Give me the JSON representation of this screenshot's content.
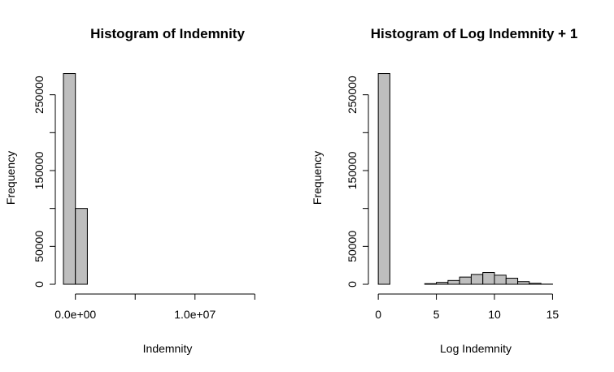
{
  "chart_data": [
    {
      "type": "bar",
      "title": "Histogram of Indemnity",
      "xlabel": "Indemnity",
      "ylabel": "Frequency",
      "bar_color": "#bebebe",
      "border_color": "#000000",
      "bins": [
        {
          "x0": -1000000,
          "x1": 0,
          "count": 278000
        },
        {
          "x0": 0,
          "x1": 1000000,
          "count": 100000
        },
        {
          "x0": 1000000,
          "x1": 16000000,
          "count": 0
        }
      ],
      "xlim": [
        -1000000,
        16000000
      ],
      "ylim": [
        0,
        285000
      ],
      "xticks": [
        {
          "value": 0,
          "label": "0.0e+00"
        },
        {
          "value": 5000000,
          "label": ""
        },
        {
          "value": 10000000,
          "label": "1.0e+07"
        },
        {
          "value": 15000000,
          "label": ""
        }
      ],
      "yticks": [
        {
          "value": 0,
          "label": "0"
        },
        {
          "value": 50000,
          "label": "50000"
        },
        {
          "value": 150000,
          "label": "150000"
        },
        {
          "value": 250000,
          "label": "250000"
        }
      ],
      "yticks_minor": [
        100000,
        200000
      ],
      "grid": false
    },
    {
      "type": "bar",
      "title": "Histogram of Log Indemnity + 1",
      "xlabel": "Log Indemnity",
      "ylabel": "Frequency",
      "bar_color": "#bebebe",
      "border_color": "#000000",
      "bins": [
        {
          "x0": 0,
          "x1": 1,
          "count": 278000
        },
        {
          "x0": 1,
          "x1": 2,
          "count": 0
        },
        {
          "x0": 2,
          "x1": 3,
          "count": 0
        },
        {
          "x0": 3,
          "x1": 4,
          "count": 0
        },
        {
          "x0": 4,
          "x1": 5,
          "count": 800
        },
        {
          "x0": 5,
          "x1": 6,
          "count": 2500
        },
        {
          "x0": 6,
          "x1": 7,
          "count": 5000
        },
        {
          "x0": 7,
          "x1": 8,
          "count": 9500
        },
        {
          "x0": 8,
          "x1": 9,
          "count": 13000
        },
        {
          "x0": 9,
          "x1": 10,
          "count": 15500
        },
        {
          "x0": 10,
          "x1": 11,
          "count": 12000
        },
        {
          "x0": 11,
          "x1": 12,
          "count": 8000
        },
        {
          "x0": 12,
          "x1": 13,
          "count": 3500
        },
        {
          "x0": 13,
          "x1": 14,
          "count": 1300
        },
        {
          "x0": 14,
          "x1": 15,
          "count": 200
        }
      ],
      "xlim": [
        -0.5,
        17
      ],
      "ylim": [
        0,
        285000
      ],
      "xticks": [
        {
          "value": 0,
          "label": "0"
        },
        {
          "value": 5,
          "label": "5"
        },
        {
          "value": 10,
          "label": "10"
        },
        {
          "value": 15,
          "label": "15"
        }
      ],
      "yticks": [
        {
          "value": 0,
          "label": "0"
        },
        {
          "value": 50000,
          "label": "50000"
        },
        {
          "value": 150000,
          "label": "150000"
        },
        {
          "value": 250000,
          "label": "250000"
        }
      ],
      "yticks_minor": [
        100000,
        200000
      ],
      "grid": false
    }
  ]
}
